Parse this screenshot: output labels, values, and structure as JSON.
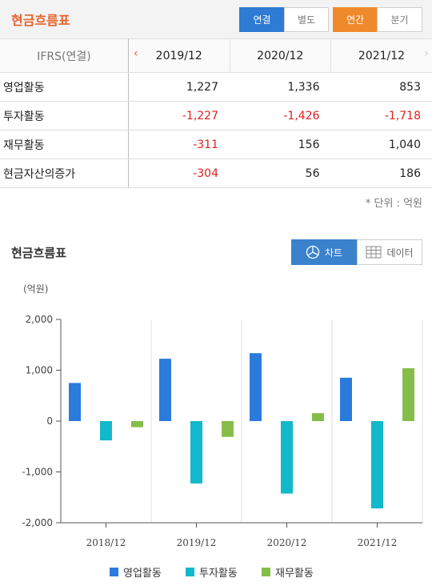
{
  "header": {
    "title": "현금흐름표",
    "consolidated_label": "연결",
    "separate_label": "별도",
    "annual_label": "연간",
    "quarterly_label": "분기"
  },
  "table": {
    "basis_label": "IFRS(연결)",
    "prev_arrow": "‹",
    "next_arrow": "›",
    "periods": [
      "2019/12",
      "2020/12",
      "2021/12"
    ],
    "rows": [
      {
        "label": "영업활동",
        "values": [
          "1,227",
          "1,336",
          "853"
        ]
      },
      {
        "label": "투자활동",
        "values": [
          "-1,227",
          "-1,426",
          "-1,718"
        ]
      },
      {
        "label": "재무활동",
        "values": [
          "-311",
          "156",
          "1,040"
        ]
      },
      {
        "label": "현금자산의증가",
        "values": [
          "-304",
          "56",
          "186"
        ]
      }
    ],
    "unit_note": "* 단위 : 억원"
  },
  "chart_section": {
    "title": "현금흐름표",
    "chart_tab_label": "차트",
    "data_tab_label": "데이터"
  },
  "chart_data": {
    "type": "bar",
    "title": "",
    "ylabel": "(억원)",
    "xlabel": "",
    "categories": [
      "2018/12",
      "2019/12",
      "2020/12",
      "2021/12"
    ],
    "series": [
      {
        "name": "영업활동",
        "color": "#2b7bdc",
        "values": [
          750,
          1227,
          1336,
          853
        ]
      },
      {
        "name": "투자활동",
        "color": "#12b8cc",
        "values": [
          -380,
          -1227,
          -1426,
          -1718
        ]
      },
      {
        "name": "재무활동",
        "color": "#86bd4a",
        "values": [
          -120,
          -311,
          156,
          1040
        ]
      }
    ],
    "ylim": [
      -2000,
      2000
    ],
    "yticks": [
      2000,
      1000,
      0,
      -1000,
      -2000
    ],
    "ytick_labels": [
      "2,000",
      "1,000",
      "0",
      "-1,000",
      "-2,000"
    ],
    "grid": "vertical",
    "legend": "bottom"
  }
}
